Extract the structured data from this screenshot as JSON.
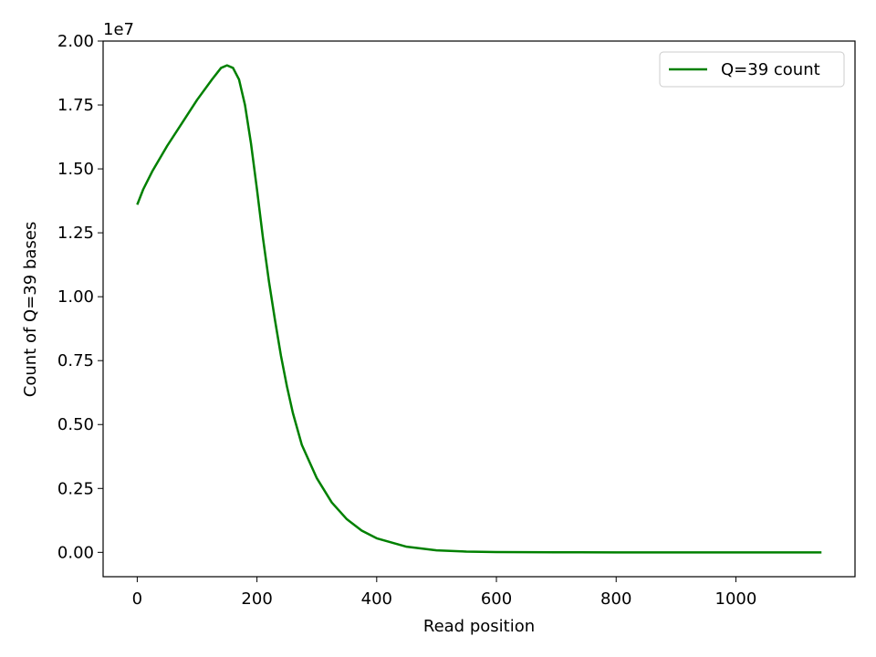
{
  "chart_data": {
    "type": "line",
    "xlabel": "Read position",
    "ylabel": "Count of Q=39 bases",
    "y_offset_label": "1e7",
    "x": [
      0,
      10,
      25,
      50,
      75,
      100,
      125,
      140,
      150,
      160,
      170,
      180,
      190,
      200,
      210,
      220,
      230,
      240,
      250,
      260,
      275,
      300,
      325,
      350,
      375,
      400,
      450,
      500,
      550,
      600,
      700,
      800,
      1000,
      1143
    ],
    "series": [
      {
        "name": "Q=39 count",
        "color": "#008000",
        "values": [
          13600000,
          14200000,
          14900000,
          15900000,
          16800000,
          17700000,
          18500000,
          18950000,
          19050000,
          18950000,
          18500000,
          17500000,
          16000000,
          14200000,
          12300000,
          10600000,
          9100000,
          7700000,
          6500000,
          5450000,
          4200000,
          2900000,
          1950000,
          1300000,
          850000,
          550000,
          220000,
          80000,
          30000,
          10000,
          2000,
          0,
          0,
          0
        ]
      }
    ],
    "xlim": [
      -57,
      1199
    ],
    "ylim": [
      -952000,
      20000000
    ],
    "xticks": [
      0,
      200,
      400,
      600,
      800,
      1000
    ],
    "yticks": [
      {
        "value": 0,
        "label": "0.00"
      },
      {
        "value": 2500000,
        "label": "0.25"
      },
      {
        "value": 5000000,
        "label": "0.50"
      },
      {
        "value": 7500000,
        "label": "0.75"
      },
      {
        "value": 10000000,
        "label": "1.00"
      },
      {
        "value": 12500000,
        "label": "1.25"
      },
      {
        "value": 15000000,
        "label": "1.50"
      },
      {
        "value": 17500000,
        "label": "1.75"
      },
      {
        "value": 20000000,
        "label": "2.00"
      }
    ],
    "grid": false,
    "legend": "upper right"
  }
}
